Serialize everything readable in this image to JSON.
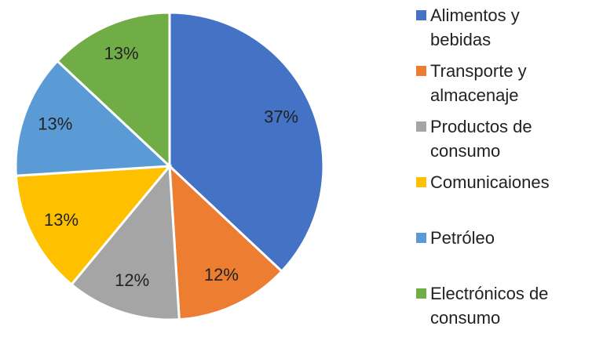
{
  "chart_data": {
    "type": "pie",
    "categories": [
      "Alimentos y bebidas",
      "Transporte y almacenaje",
      "Productos de consumo",
      "Comunicaiones",
      "Petróleo",
      "Electrónicos de consumo"
    ],
    "values": [
      37,
      12,
      12,
      13,
      13,
      13
    ],
    "value_labels": [
      "37%",
      "12%",
      "12%",
      "13%",
      "13%",
      "13%"
    ],
    "colors": [
      "#4472c4",
      "#ed7d31",
      "#a5a5a5",
      "#ffc000",
      "#5b9bd5",
      "#70ad47"
    ],
    "legend": "right"
  }
}
